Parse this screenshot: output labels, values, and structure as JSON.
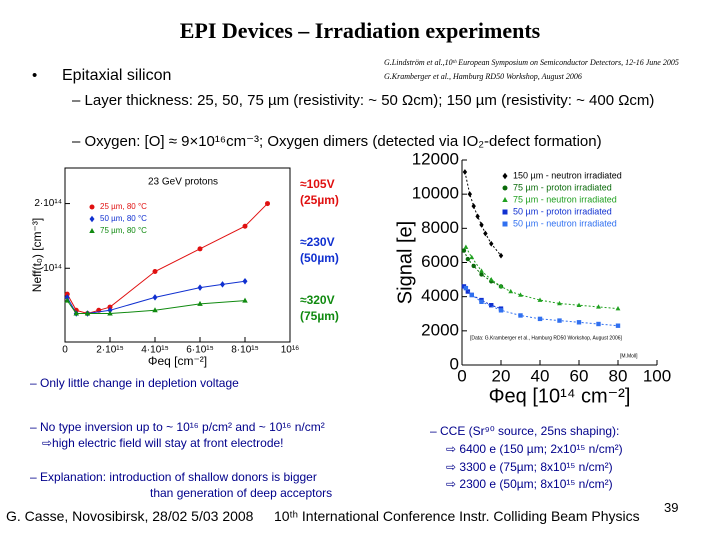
{
  "title": "EPI Devices – Irradiation experiments",
  "reference": [
    "G.Lindström et al.,10ᵗʰ European Symposium on Semiconductor Detectors, 12-16 June 2005",
    "G.Kramberger et al., Hamburg RD50 Workshop, August 2006"
  ],
  "bullet": "Epitaxial silicon",
  "sub_bullets": [
    "Layer thickness: 25, 50, 75 µm (resistivity: ~ 50 Ωcm); 150 µm (resistivity: ~ 400 Ωcm)",
    "Oxygen: [O] ≈ 9×10¹⁶cm⁻³; Oxygen dimers (detected via IO₂-defect formation)"
  ],
  "notes_left": [
    "Only little change in depletion voltage",
    "No type inversion up to ~ 10¹⁶ p/cm² and ~ 10¹⁶ n/cm²",
    "⇨high electric field will stay at front electrode!",
    "Explanation: introduction of shallow donors is bigger",
    "than generation of deep acceptors"
  ],
  "notes_right": [
    "CCE (Sr⁹⁰ source, 25ns shaping):",
    "⇨ 6400 e (150 µm; 2x10¹⁵ n/cm²)",
    "⇨ 3300 e (75µm; 8x10¹⁵ n/cm²)",
    "⇨ 2300 e (50µm; 8x10¹⁵ n/cm²)"
  ],
  "footer": [
    "G. Casse, Novosibirsk, 28/02 5/03 2008",
    "10ᵗʰ International Conference Instr. Colliding Beam Physics"
  ],
  "page_number": "39",
  "chart_data": [
    {
      "type": "scatter",
      "subtitle": "23 GeV protons",
      "x_label": "Φeq [cm⁻²]",
      "y_label": "Neff(t₀) [cm⁻³]",
      "xlim": [
        0,
        1e+16
      ],
      "ylim": [
        -14000000000000.0,
        255000000000000.0
      ],
      "xticks": [
        0,
        {
          "value": 2000000000000000.0,
          "label": "2·10¹⁵"
        },
        {
          "value": 4000000000000000.0,
          "label": "4·10¹⁵"
        },
        {
          "value": 6000000000000000.0,
          "label": "6·10¹⁵"
        },
        {
          "value": 8000000000000000.0,
          "label": "8·10¹⁵"
        },
        {
          "value": 1e+16,
          "label": "10¹⁶"
        }
      ],
      "yticks": [
        {
          "value": 100000000000000.0,
          "label": "10¹⁴"
        },
        {
          "value": 200000000000000.0,
          "label": "2·10¹⁴"
        }
      ],
      "series": [
        {
          "name": "25 µm, 80 °C",
          "color": "#e01010",
          "marker": "circle",
          "x": [
            100000000000000.0,
            500000000000000.0,
            1000000000000000.0,
            1500000000000000.0,
            2000000000000000.0,
            4000000000000000.0,
            6000000000000000.0,
            8000000000000000.0,
            9000000000000000.0
          ],
          "values": [
            60000000000000.0,
            35000000000000.0,
            30000000000000.0,
            35000000000000.0,
            40000000000000.0,
            95000000000000.0,
            130000000000000.0,
            165000000000000.0,
            200000000000000.0
          ]
        },
        {
          "name": "50 µm, 80 °C",
          "color": "#1030d0",
          "marker": "diamond",
          "x": [
            100000000000000.0,
            500000000000000.0,
            1000000000000000.0,
            2000000000000000.0,
            4000000000000000.0,
            6000000000000000.0,
            7000000000000000.0,
            8000000000000000.0
          ],
          "values": [
            55000000000000.0,
            30000000000000.0,
            30000000000000.0,
            35000000000000.0,
            55000000000000.0,
            70000000000000.0,
            75000000000000.0,
            80000000000000.0
          ]
        },
        {
          "name": "75 µm, 80 °C",
          "color": "#108a10",
          "marker": "triangle",
          "x": [
            100000000000000.0,
            500000000000000.0,
            1000000000000000.0,
            2000000000000000.0,
            4000000000000000.0,
            6000000000000000.0,
            8000000000000000.0
          ],
          "values": [
            50000000000000.0,
            30000000000000.0,
            30000000000000.0,
            30000000000000.0,
            35000000000000.0,
            45000000000000.0,
            50000000000000.0
          ]
        }
      ],
      "annotations": [
        {
          "lines": [
            "≈105V",
            "(25µm)"
          ],
          "color": "#e01010"
        },
        {
          "lines": [
            "≈230V",
            "(50µm)"
          ],
          "color": "#1030d0"
        },
        {
          "lines": [
            "≈320V",
            "(75µm)"
          ],
          "color": "#108a10"
        }
      ]
    },
    {
      "type": "scatter",
      "x_label": "Φeq [10¹⁴ cm⁻²]",
      "y_label": "Signal [e]",
      "notes": [
        "[Data: G.Kramberger et al., Hamburg RD50 Workshop, August 2006]",
        "[M.Moll]"
      ],
      "xlim": [
        0,
        100
      ],
      "ylim": [
        0,
        12000
      ],
      "xticks": [
        0,
        20,
        40,
        60,
        80,
        100
      ],
      "yticks": [
        0,
        2000,
        4000,
        6000,
        8000,
        10000,
        12000
      ],
      "series": [
        {
          "name": "150 µm - neutron irradiated",
          "color": "#000000",
          "marker": "diamond",
          "x": [
            1.5,
            4,
            6,
            8,
            10,
            12,
            15,
            20
          ],
          "values": [
            11300,
            10000,
            9300,
            8700,
            8200,
            7700,
            7100,
            6400
          ]
        },
        {
          "name": "75 µm - proton irradiated",
          "color": "#0a6a0a",
          "marker": "circle",
          "x": [
            1,
            3,
            6,
            10,
            15,
            20
          ],
          "values": [
            6700,
            6200,
            5800,
            5300,
            4900,
            4600
          ]
        },
        {
          "name": "75 µm - neutron irradiated",
          "color": "#20a020",
          "marker": "triangle",
          "x": [
            2,
            5,
            10,
            15,
            20,
            25,
            30,
            40,
            50,
            60,
            70,
            80
          ],
          "values": [
            6900,
            6300,
            5500,
            5000,
            4600,
            4300,
            4100,
            3800,
            3600,
            3500,
            3400,
            3300
          ]
        },
        {
          "name": "50 µm - proton irradiated",
          "color": "#1030d0",
          "marker": "square",
          "x": [
            1,
            3,
            5,
            10,
            15,
            20
          ],
          "values": [
            4600,
            4300,
            4100,
            3800,
            3500,
            3300
          ]
        },
        {
          "name": "50 µm - neutron irradiated",
          "color": "#3070f0",
          "marker": "square",
          "x": [
            2,
            5,
            10,
            20,
            30,
            40,
            50,
            60,
            70,
            80
          ],
          "values": [
            4500,
            4100,
            3700,
            3200,
            2900,
            2700,
            2600,
            2500,
            2400,
            2300
          ]
        }
      ]
    }
  ]
}
